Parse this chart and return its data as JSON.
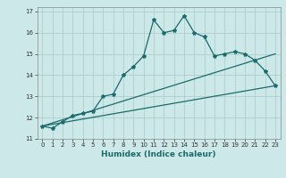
{
  "title": "",
  "xlabel": "Humidex (Indice chaleur)",
  "ylabel": "",
  "background_color": "#cde8e8",
  "grid_color": "#aecece",
  "line_color": "#1a6b6b",
  "xlim": [
    -0.5,
    23.5
  ],
  "ylim": [
    11,
    17.2
  ],
  "yticks": [
    11,
    12,
    13,
    14,
    15,
    16,
    17
  ],
  "xticks": [
    0,
    1,
    2,
    3,
    4,
    5,
    6,
    7,
    8,
    9,
    10,
    11,
    12,
    13,
    14,
    15,
    16,
    17,
    18,
    19,
    20,
    21,
    22,
    23
  ],
  "main_line": [
    [
      0,
      11.6
    ],
    [
      1,
      11.5
    ],
    [
      2,
      11.8
    ],
    [
      3,
      12.1
    ],
    [
      4,
      12.2
    ],
    [
      5,
      12.3
    ],
    [
      6,
      13.0
    ],
    [
      7,
      13.1
    ],
    [
      8,
      14.0
    ],
    [
      9,
      14.4
    ],
    [
      10,
      14.9
    ],
    [
      11,
      16.6
    ],
    [
      12,
      16.0
    ],
    [
      13,
      16.1
    ],
    [
      14,
      16.8
    ],
    [
      15,
      16.0
    ],
    [
      16,
      15.8
    ],
    [
      17,
      14.9
    ],
    [
      18,
      15.0
    ],
    [
      19,
      15.1
    ],
    [
      20,
      15.0
    ],
    [
      21,
      14.7
    ],
    [
      22,
      14.2
    ],
    [
      23,
      13.5
    ]
  ],
  "linear_line1": [
    [
      0,
      11.6
    ],
    [
      23,
      13.5
    ]
  ],
  "linear_line2": [
    [
      0,
      11.6
    ],
    [
      23,
      15.0
    ]
  ],
  "marker": "*",
  "markersize": 3.0,
  "linewidth": 0.9,
  "xlabel_fontsize": 6.5,
  "xlabel_color": "#1a6b6b",
  "tick_fontsize": 5.0,
  "figsize": [
    3.2,
    2.0
  ],
  "dpi": 100
}
